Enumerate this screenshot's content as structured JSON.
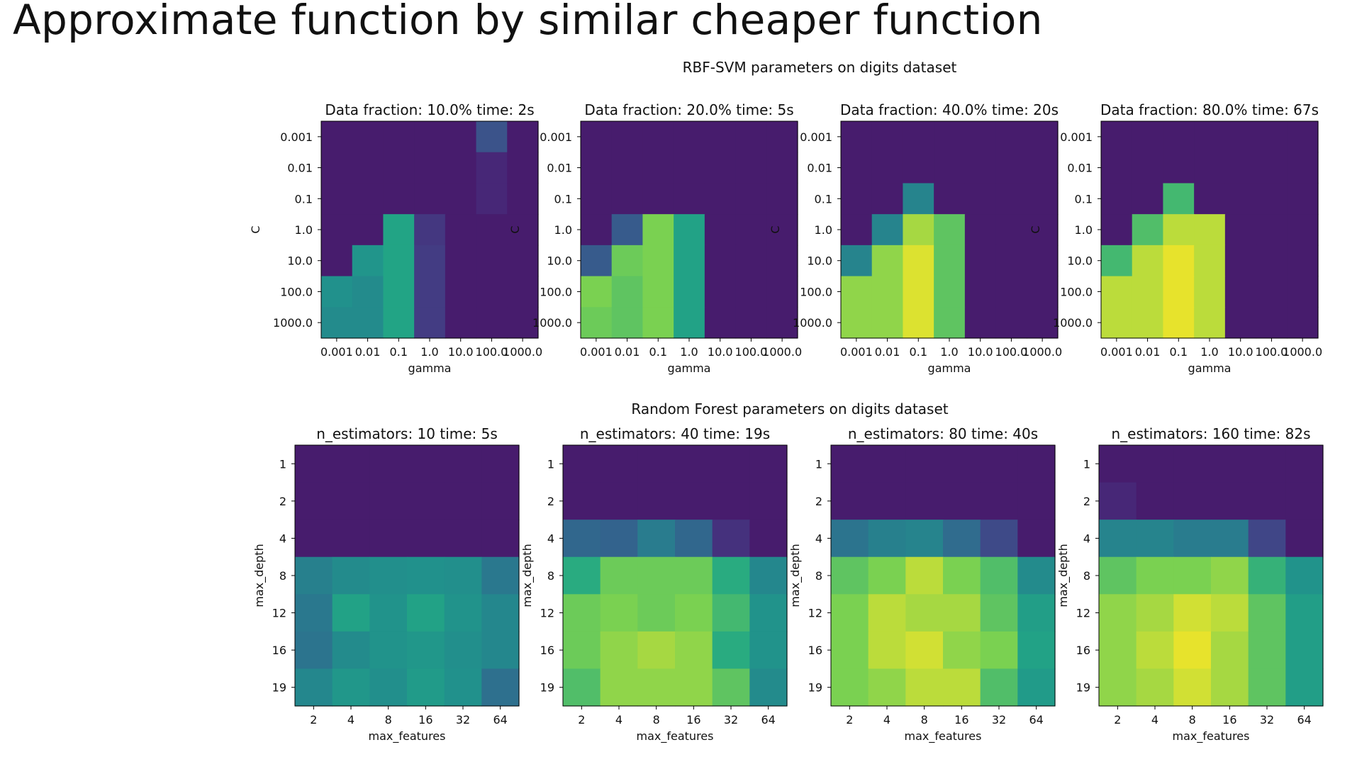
{
  "slide": {
    "title": "Approximate function by similar cheaper function"
  },
  "chart_data": [
    {
      "type": "heatmap",
      "figure_title": "RBF-SVM parameters on digits dataset",
      "title": "Data fraction: 10.0% time: 2s",
      "xlabel": "gamma",
      "ylabel": "C",
      "x": [
        "0.001",
        "0.01",
        "0.1",
        "1.0",
        "10.0",
        "100.0",
        "1000.0"
      ],
      "y": [
        "0.001",
        "0.01",
        "0.1",
        "1.0",
        "10.0",
        "100.0",
        "1000.0"
      ],
      "values": [
        [
          0.1,
          0.1,
          0.1,
          0.1,
          0.1,
          0.32,
          0.1
        ],
        [
          0.1,
          0.1,
          0.1,
          0.1,
          0.1,
          0.14,
          0.1
        ],
        [
          0.1,
          0.1,
          0.1,
          0.1,
          0.1,
          0.14,
          0.1
        ],
        [
          0.1,
          0.1,
          0.73,
          0.2,
          0.1,
          0.1,
          0.1
        ],
        [
          0.1,
          0.65,
          0.73,
          0.22,
          0.1,
          0.1,
          0.1
        ],
        [
          0.63,
          0.6,
          0.73,
          0.22,
          0.1,
          0.1,
          0.1
        ],
        [
          0.6,
          0.6,
          0.73,
          0.22,
          0.1,
          0.1,
          0.1
        ]
      ]
    },
    {
      "type": "heatmap",
      "title": "Data fraction: 20.0% time: 5s",
      "xlabel": "gamma",
      "ylabel": "C",
      "x": [
        "0.001",
        "0.01",
        "0.1",
        "1.0",
        "10.0",
        "100.0",
        "1000.0"
      ],
      "y": [
        "0.001",
        "0.01",
        "0.1",
        "1.0",
        "10.0",
        "100.0",
        "1000.0"
      ],
      "values": [
        [
          0.1,
          0.1,
          0.1,
          0.1,
          0.1,
          0.1,
          0.1
        ],
        [
          0.1,
          0.1,
          0.1,
          0.1,
          0.1,
          0.1,
          0.1
        ],
        [
          0.1,
          0.1,
          0.1,
          0.1,
          0.1,
          0.1,
          0.1
        ],
        [
          0.1,
          0.36,
          0.88,
          0.72,
          0.1,
          0.1,
          0.1
        ],
        [
          0.36,
          0.86,
          0.88,
          0.72,
          0.1,
          0.1,
          0.1
        ],
        [
          0.88,
          0.84,
          0.88,
          0.72,
          0.1,
          0.1,
          0.1
        ],
        [
          0.86,
          0.84,
          0.88,
          0.72,
          0.1,
          0.1,
          0.1
        ]
      ]
    },
    {
      "type": "heatmap",
      "title": "Data fraction: 40.0% time: 20s",
      "xlabel": "gamma",
      "ylabel": "C",
      "x": [
        "0.001",
        "0.01",
        "0.1",
        "1.0",
        "10.0",
        "100.0",
        "1000.0"
      ],
      "y": [
        "0.001",
        "0.01",
        "0.1",
        "1.0",
        "10.0",
        "100.0",
        "1000.0"
      ],
      "values": [
        [
          0.1,
          0.1,
          0.1,
          0.1,
          0.1,
          0.1,
          0.1
        ],
        [
          0.1,
          0.1,
          0.1,
          0.1,
          0.1,
          0.1,
          0.1
        ],
        [
          0.1,
          0.1,
          0.56,
          0.1,
          0.1,
          0.1,
          0.1
        ],
        [
          0.1,
          0.56,
          0.92,
          0.84,
          0.1,
          0.1,
          0.1
        ],
        [
          0.56,
          0.9,
          0.97,
          0.84,
          0.1,
          0.1,
          0.1
        ],
        [
          0.9,
          0.9,
          0.97,
          0.84,
          0.1,
          0.1,
          0.1
        ],
        [
          0.9,
          0.9,
          0.97,
          0.84,
          0.1,
          0.1,
          0.1
        ]
      ]
    },
    {
      "type": "heatmap",
      "title": "Data fraction: 80.0% time: 67s",
      "xlabel": "gamma",
      "ylabel": "C",
      "x": [
        "0.001",
        "0.01",
        "0.1",
        "1.0",
        "10.0",
        "100.0",
        "1000.0"
      ],
      "y": [
        "0.001",
        "0.01",
        "0.1",
        "1.0",
        "10.0",
        "100.0",
        "1000.0"
      ],
      "values": [
        [
          0.1,
          0.1,
          0.1,
          0.1,
          0.1,
          0.1,
          0.1
        ],
        [
          0.1,
          0.1,
          0.1,
          0.1,
          0.1,
          0.1,
          0.1
        ],
        [
          0.1,
          0.1,
          0.8,
          0.1,
          0.1,
          0.1,
          0.1
        ],
        [
          0.1,
          0.82,
          0.94,
          0.94,
          0.1,
          0.1,
          0.1
        ],
        [
          0.8,
          0.94,
          0.98,
          0.94,
          0.1,
          0.1,
          0.1
        ],
        [
          0.94,
          0.94,
          0.98,
          0.94,
          0.1,
          0.1,
          0.1
        ],
        [
          0.94,
          0.94,
          0.98,
          0.94,
          0.1,
          0.1,
          0.1
        ]
      ]
    },
    {
      "type": "heatmap",
      "figure_title": "Random Forest parameters on digits dataset",
      "title": "n_estimators: 10 time: 5s",
      "xlabel": "max_features",
      "ylabel": "max_depth",
      "x": [
        "2",
        "4",
        "8",
        "16",
        "32",
        "64"
      ],
      "y": [
        "1",
        "2",
        "4",
        "8",
        "12",
        "16",
        "19"
      ],
      "values": [
        [
          0.1,
          0.1,
          0.1,
          0.1,
          0.1,
          0.1
        ],
        [
          0.1,
          0.1,
          0.1,
          0.1,
          0.1,
          0.1
        ],
        [
          0.1,
          0.1,
          0.1,
          0.1,
          0.1,
          0.1
        ],
        [
          0.54,
          0.6,
          0.62,
          0.63,
          0.62,
          0.5
        ],
        [
          0.5,
          0.72,
          0.64,
          0.72,
          0.64,
          0.58
        ],
        [
          0.48,
          0.6,
          0.64,
          0.66,
          0.62,
          0.58
        ],
        [
          0.58,
          0.66,
          0.62,
          0.68,
          0.63,
          0.46
        ]
      ]
    },
    {
      "type": "heatmap",
      "title": "n_estimators: 40 time: 19s",
      "xlabel": "max_features",
      "ylabel": "max_depth",
      "x": [
        "2",
        "4",
        "8",
        "16",
        "32",
        "64"
      ],
      "y": [
        "1",
        "2",
        "4",
        "8",
        "12",
        "16",
        "19"
      ],
      "values": [
        [
          0.1,
          0.1,
          0.1,
          0.1,
          0.1,
          0.1
        ],
        [
          0.1,
          0.1,
          0.1,
          0.1,
          0.1,
          0.1
        ],
        [
          0.42,
          0.4,
          0.52,
          0.42,
          0.18,
          0.1
        ],
        [
          0.76,
          0.86,
          0.86,
          0.86,
          0.76,
          0.58
        ],
        [
          0.86,
          0.88,
          0.86,
          0.88,
          0.8,
          0.64
        ],
        [
          0.86,
          0.9,
          0.92,
          0.9,
          0.76,
          0.64
        ],
        [
          0.82,
          0.9,
          0.9,
          0.9,
          0.84,
          0.6
        ]
      ]
    },
    {
      "type": "heatmap",
      "title": "n_estimators: 80 time: 40s",
      "xlabel": "max_features",
      "ylabel": "max_depth",
      "x": [
        "2",
        "4",
        "8",
        "16",
        "32",
        "64"
      ],
      "y": [
        "1",
        "2",
        "4",
        "8",
        "12",
        "16",
        "19"
      ],
      "values": [
        [
          0.1,
          0.1,
          0.1,
          0.1,
          0.1,
          0.1
        ],
        [
          0.1,
          0.1,
          0.1,
          0.1,
          0.1,
          0.1
        ],
        [
          0.48,
          0.54,
          0.56,
          0.44,
          0.28,
          0.1
        ],
        [
          0.84,
          0.88,
          0.94,
          0.88,
          0.82,
          0.6
        ],
        [
          0.88,
          0.94,
          0.92,
          0.92,
          0.84,
          0.7
        ],
        [
          0.88,
          0.94,
          0.96,
          0.9,
          0.88,
          0.72
        ],
        [
          0.88,
          0.9,
          0.94,
          0.94,
          0.82,
          0.68
        ]
      ]
    },
    {
      "type": "heatmap",
      "title": "n_estimators: 160 time: 82s",
      "xlabel": "max_features",
      "ylabel": "max_depth",
      "x": [
        "2",
        "4",
        "8",
        "16",
        "32",
        "64"
      ],
      "y": [
        "1",
        "2",
        "4",
        "8",
        "12",
        "16",
        "19"
      ],
      "values": [
        [
          0.1,
          0.1,
          0.1,
          0.1,
          0.1,
          0.1
        ],
        [
          0.14,
          0.1,
          0.1,
          0.1,
          0.1,
          0.1
        ],
        [
          0.56,
          0.56,
          0.52,
          0.52,
          0.26,
          0.1
        ],
        [
          0.84,
          0.88,
          0.88,
          0.9,
          0.78,
          0.64
        ],
        [
          0.9,
          0.92,
          0.96,
          0.94,
          0.84,
          0.7
        ],
        [
          0.9,
          0.94,
          0.98,
          0.92,
          0.84,
          0.7
        ],
        [
          0.9,
          0.92,
          0.96,
          0.92,
          0.84,
          0.7
        ]
      ]
    }
  ]
}
